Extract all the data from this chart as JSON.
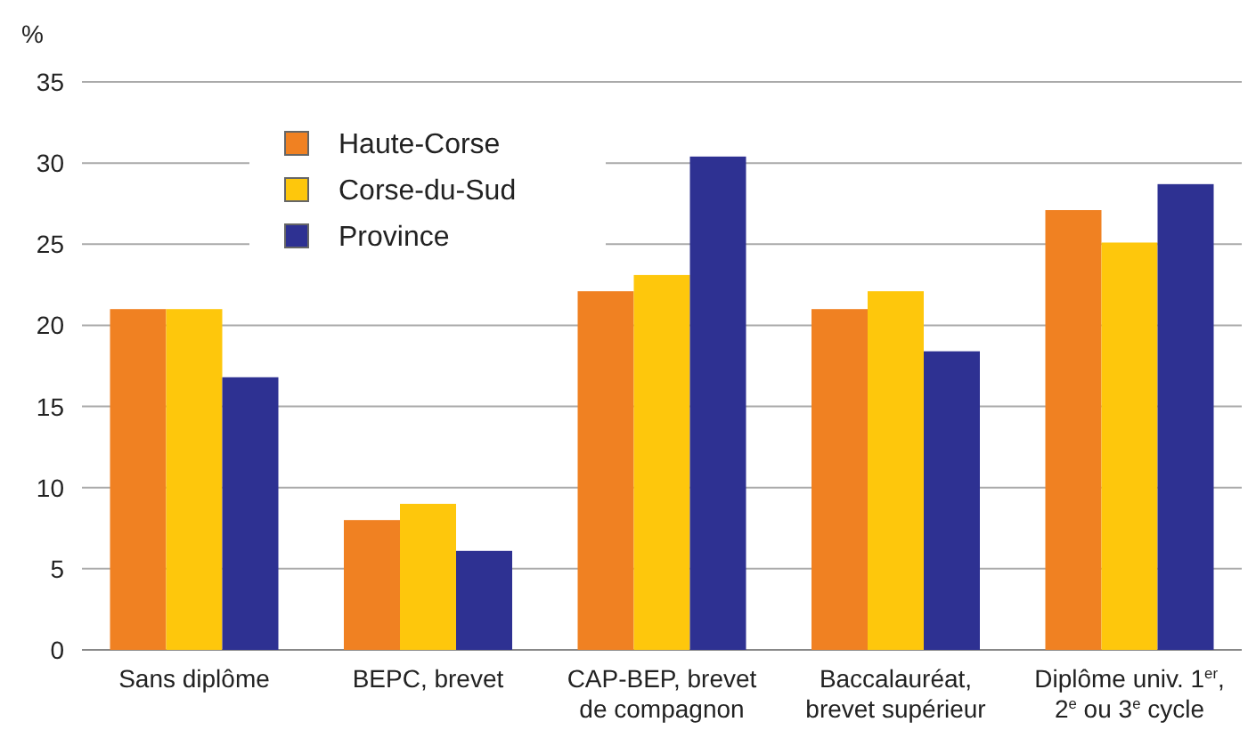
{
  "chart_data": {
    "type": "bar",
    "ylabel": "%",
    "categories": [
      "Sans diplôme",
      "BEPC, brevet",
      "CAP-BEP, brevet\nde compagnon",
      "Baccalauréat,\nbrevet supérieur",
      "Diplôme univ. 1$^{er}$,\n2$^{e}$ ou 3$^{e}$ cycle"
    ],
    "series": [
      {
        "name": "Haute-Corse",
        "color": "#f08122",
        "values": [
          21,
          8,
          22.1,
          21,
          27.1
        ]
      },
      {
        "name": "Corse-du-Sud",
        "color": "#fec70c",
        "values": [
          21,
          9,
          23.1,
          22.1,
          25.1
        ]
      },
      {
        "name": "Province",
        "color": "#2e3192",
        "values": [
          16.8,
          6.1,
          30.4,
          18.4,
          28.7
        ]
      }
    ],
    "ylim": [
      0,
      35
    ],
    "yticks": [
      0,
      5,
      10,
      15,
      20,
      25,
      30,
      35
    ],
    "grid": "y",
    "legend": "top left"
  }
}
